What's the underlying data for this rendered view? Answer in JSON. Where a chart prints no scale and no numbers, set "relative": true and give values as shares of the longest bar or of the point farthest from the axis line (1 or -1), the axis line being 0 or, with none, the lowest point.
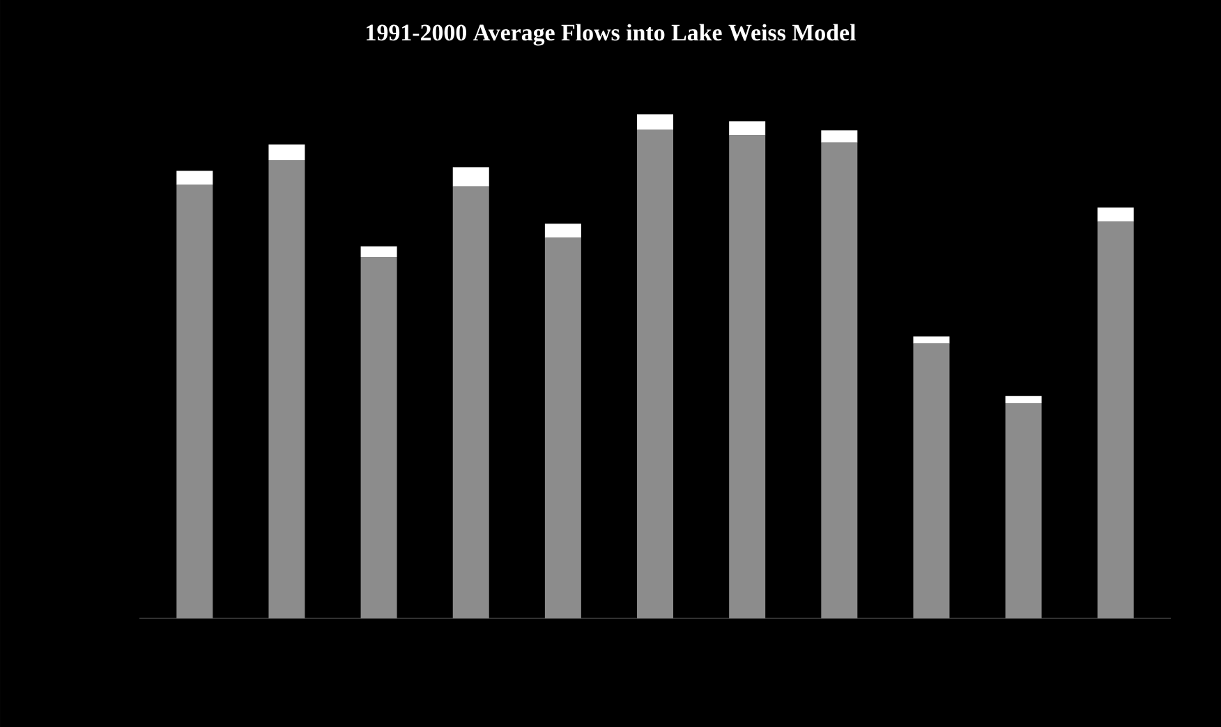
{
  "chart_data": {
    "type": "bar",
    "title": "1991-2000 Average Flows into Lake Weiss Model",
    "relative": true,
    "stacked": true,
    "categories": [
      null,
      null,
      null,
      null,
      null,
      null,
      null,
      null,
      null,
      null,
      null
    ],
    "series": [
      {
        "color": "#8c8c8c",
        "values": [
          0.86,
          0.909,
          0.717,
          0.857,
          0.755,
          0.969,
          0.958,
          0.944,
          0.545,
          0.427,
          0.787
        ]
      },
      {
        "color": "#ffffff",
        "values": [
          0.028,
          0.031,
          0.021,
          0.038,
          0.028,
          0.031,
          0.028,
          0.024,
          0.014,
          0.014,
          0.028
        ]
      }
    ]
  }
}
